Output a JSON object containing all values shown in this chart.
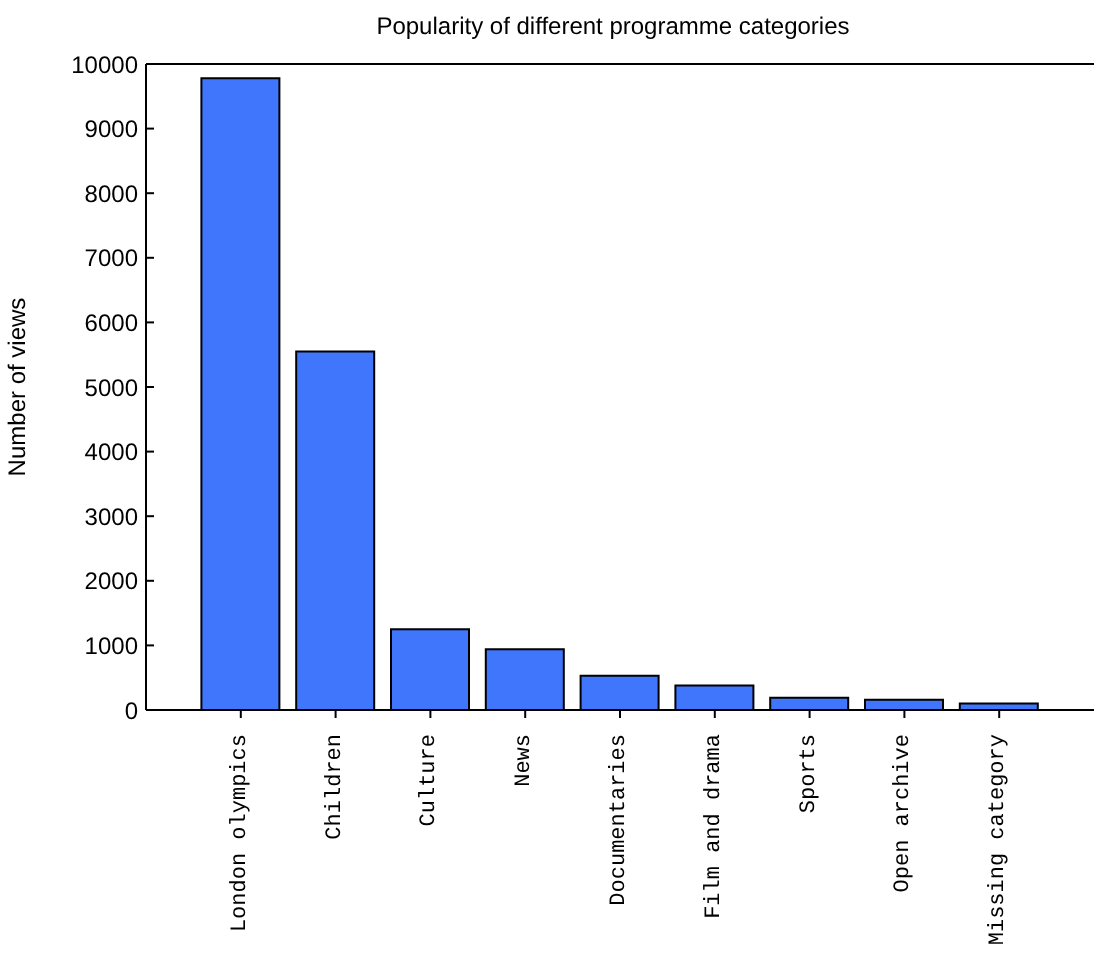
{
  "chart_data": {
    "type": "bar",
    "title": "Popularity of different programme categories",
    "ylabel": "Number of views",
    "categories": [
      "London olympics",
      "Children",
      "Culture",
      "News",
      "Documentaries",
      "Film and drama",
      "Sports",
      "Open archive",
      "Missing category"
    ],
    "values": [
      9780,
      5550,
      1250,
      940,
      530,
      380,
      190,
      160,
      100
    ],
    "color": "#3f76fc",
    "ylim": [
      0,
      10000
    ],
    "yticks": [
      0,
      1000,
      2000,
      3000,
      4000,
      5000,
      6000,
      7000,
      8000,
      9000,
      10000
    ]
  }
}
